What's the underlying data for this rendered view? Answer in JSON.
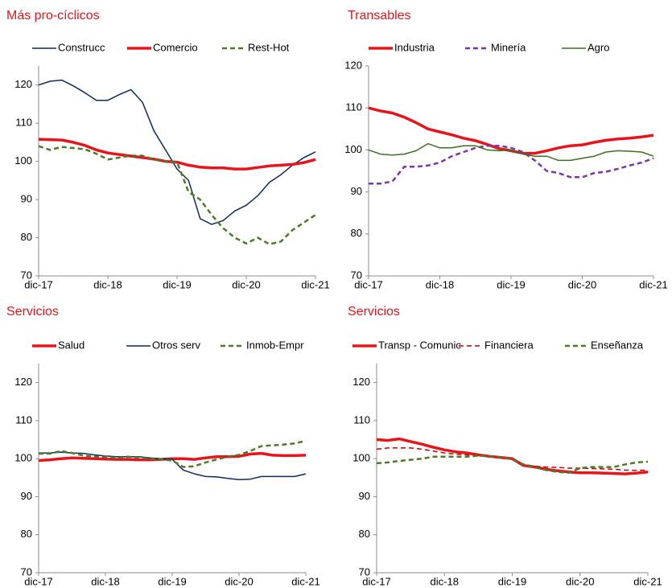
{
  "chart_data": [
    {
      "type": "line",
      "title": "Más pro-cíclicos",
      "categories": [
        "dic-17",
        null,
        null,
        null,
        null,
        null,
        "dic-18",
        null,
        null,
        null,
        null,
        null,
        "dic-19",
        null,
        null,
        null,
        null,
        null,
        "dic-20",
        null,
        null,
        null,
        null,
        null,
        "dic-21"
      ],
      "series": [
        {
          "name": "Construcc",
          "color": "#0e2a5c",
          "line_style": "thin",
          "values": [
            120,
            121,
            121.3,
            119.8,
            118,
            116,
            116,
            117.5,
            118.8,
            115.5,
            108,
            103,
            98,
            95,
            85,
            83.5,
            84.5,
            87,
            88.5,
            91,
            94.5,
            96.5,
            99,
            101,
            102.5
          ]
        },
        {
          "name": "Comercio",
          "color": "#e8141c",
          "line_style": "thick",
          "values": [
            105.8,
            105.7,
            105.6,
            105,
            104.2,
            103,
            102.2,
            101.8,
            101.4,
            101,
            100.6,
            100,
            99.8,
            99,
            98.5,
            98.3,
            98.3,
            98,
            98,
            98.4,
            98.8,
            99,
            99.2,
            99.7,
            100.5
          ]
        },
        {
          "name": "Rest-Hot",
          "color": "#4e7a28",
          "line_style": "dashed",
          "values": [
            104,
            103,
            103.8,
            103.5,
            103.2,
            102,
            100.5,
            101,
            101.5,
            101.5,
            100.5,
            100,
            99.8,
            92,
            90,
            86,
            82.5,
            80,
            78.5,
            80,
            78.3,
            79,
            82,
            84,
            86
          ]
        }
      ],
      "ylim": [
        70,
        125
      ],
      "yticks": [
        70,
        80,
        90,
        100,
        110,
        120
      ]
    },
    {
      "type": "line",
      "title": "Transables",
      "categories": [
        "dic-17",
        null,
        null,
        null,
        null,
        null,
        "dic-18",
        null,
        null,
        null,
        null,
        null,
        "dic-19",
        null,
        null,
        null,
        null,
        null,
        "dic-20",
        null,
        null,
        null,
        null,
        null,
        "dic-21"
      ],
      "series": [
        {
          "name": "Industria",
          "color": "#e8141c",
          "line_style": "thick",
          "values": [
            110,
            109.3,
            108.8,
            107.8,
            106.5,
            105,
            104.3,
            103.6,
            102.8,
            102.2,
            101.3,
            100.3,
            99.8,
            99.2,
            99.2,
            99.8,
            100.5,
            101,
            101.2,
            101.8,
            102.3,
            102.6,
            102.8,
            103.1,
            103.5
          ]
        },
        {
          "name": "Minería",
          "color": "#7a35a8",
          "line_style": "dashed",
          "values": [
            92,
            92,
            92.5,
            96,
            96,
            96.3,
            97,
            98.5,
            99.5,
            100.5,
            101,
            101,
            100.5,
            99.5,
            97.5,
            95,
            94.5,
            93.5,
            93.5,
            94.5,
            94.8,
            95.5,
            96.3,
            97,
            98
          ]
        },
        {
          "name": "Agro",
          "color": "#3b6e22",
          "line_style": "thin",
          "values": [
            100,
            99,
            98.8,
            99,
            99.8,
            101.5,
            100.5,
            100.5,
            101,
            101,
            100,
            99.8,
            100,
            99,
            98.5,
            98.5,
            97.5,
            97.5,
            98,
            98.5,
            99.5,
            99.8,
            99.7,
            99.5,
            98.5
          ]
        }
      ],
      "ylim": [
        70,
        120
      ],
      "yticks": [
        70,
        80,
        90,
        100,
        110,
        120
      ]
    },
    {
      "type": "line",
      "title": "Servicios",
      "categories": [
        "dic-17",
        null,
        null,
        null,
        null,
        null,
        "dic-18",
        null,
        null,
        null,
        null,
        null,
        "dic-19",
        null,
        null,
        null,
        null,
        null,
        "dic-20",
        null,
        null,
        null,
        null,
        null,
        "dic-21"
      ],
      "series": [
        {
          "name": "Salud",
          "color": "#e8141c",
          "line_style": "thick",
          "values": [
            99.5,
            99.7,
            100,
            100.2,
            100.1,
            100,
            99.9,
            99.8,
            99.8,
            99.7,
            99.7,
            99.8,
            100,
            100,
            99.8,
            100.2,
            100.5,
            100.5,
            100.6,
            101.2,
            101.4,
            100.9,
            100.8,
            100.8,
            100.9
          ]
        },
        {
          "name": "Otros serv",
          "color": "#0e2a5c",
          "line_style": "thin",
          "values": [
            101.5,
            101.5,
            101.7,
            101.5,
            101.4,
            101,
            100.7,
            100.5,
            100.5,
            100.5,
            100.2,
            100,
            99.8,
            97,
            96,
            95.3,
            95.2,
            94.8,
            94.5,
            94.6,
            95.3,
            95.3,
            95.3,
            95.3,
            96
          ]
        },
        {
          "name": "Inmob-Empr",
          "color": "#4e7a28",
          "line_style": "dashed",
          "values": [
            101.3,
            101.3,
            102,
            101.5,
            100.8,
            100.5,
            100.5,
            100.2,
            100.5,
            100.3,
            100,
            99.8,
            99.5,
            97.8,
            98,
            99,
            99.8,
            100.5,
            101,
            102,
            103.3,
            103.5,
            103.7,
            104,
            104.7
          ]
        }
      ],
      "ylim": [
        70,
        125
      ],
      "yticks": [
        70,
        80,
        90,
        100,
        110,
        120
      ]
    },
    {
      "type": "line",
      "title": "Servicios",
      "categories": [
        "dic-17",
        null,
        null,
        null,
        null,
        null,
        "dic-18",
        null,
        null,
        null,
        null,
        null,
        "dic-19",
        null,
        null,
        null,
        null,
        null,
        "dic-20",
        null,
        null,
        null,
        null,
        null,
        "dic-21"
      ],
      "series": [
        {
          "name": "Transp - Comunic",
          "color": "#e8141c",
          "line_style": "thick",
          "values": [
            105,
            104.8,
            105.2,
            104.5,
            103.8,
            103,
            102.3,
            101.8,
            101.5,
            101,
            100.6,
            100.3,
            100,
            98.2,
            97.8,
            97.2,
            96.8,
            96.5,
            96.3,
            96.3,
            96.2,
            96.1,
            96,
            96.2,
            96.5
          ]
        },
        {
          "name": "Financiera",
          "color": "#c00000",
          "line_style": "dashed-thin",
          "values": [
            102.5,
            102.8,
            102.8,
            102.8,
            102.5,
            102,
            101.5,
            101.2,
            101,
            100.8,
            100.6,
            100.4,
            100,
            98.5,
            98,
            97.8,
            97.7,
            97.5,
            97.5,
            97.4,
            97.3,
            97.2,
            97,
            96.9,
            97
          ]
        },
        {
          "name": "Enseñanza",
          "color": "#4e7a28",
          "line_style": "dashed",
          "values": [
            98.8,
            99,
            99.4,
            99.7,
            100,
            100.5,
            100.5,
            100.5,
            100.5,
            100.8,
            100.6,
            100.4,
            99.8,
            98.5,
            97.8,
            97,
            96.5,
            96.3,
            97.5,
            97.8,
            97.8,
            97.8,
            98.5,
            99,
            99.2
          ]
        }
      ],
      "ylim": [
        70,
        125
      ],
      "yticks": [
        70,
        80,
        90,
        100,
        110,
        120
      ]
    }
  ]
}
